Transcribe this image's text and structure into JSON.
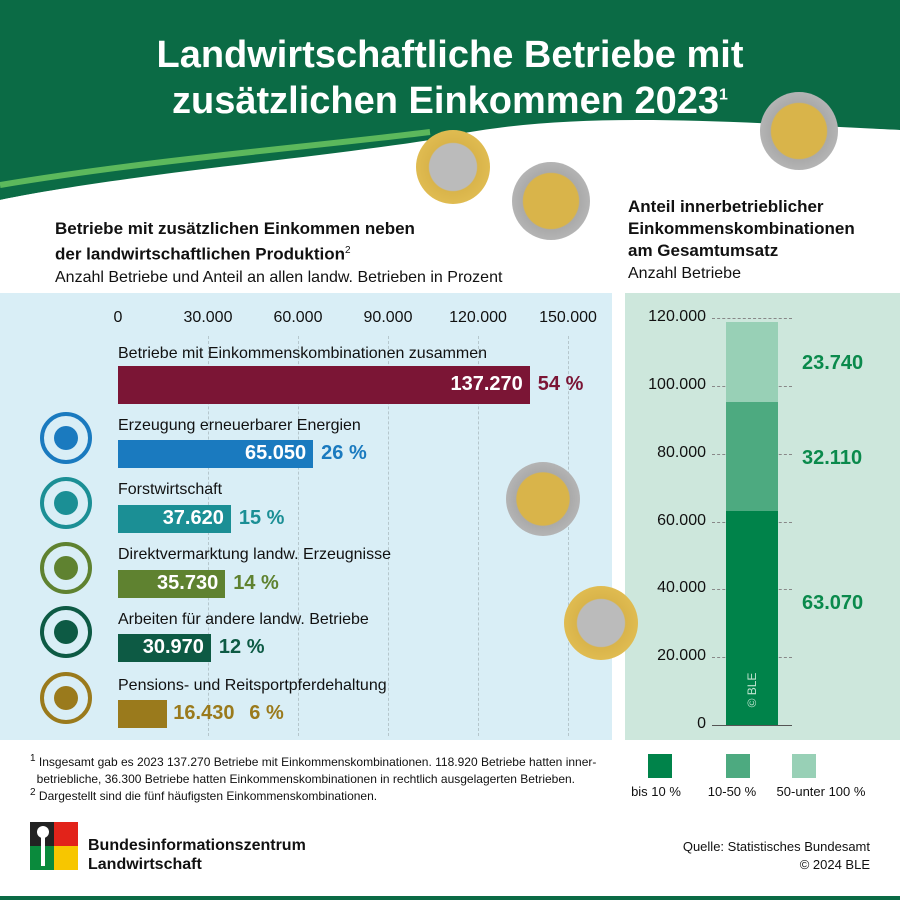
{
  "header": {
    "title_line1": "Landwirtschaftliche Betriebe mit",
    "title_line2": "zusätzlichen Einkommen 2023",
    "title_footnote": "1"
  },
  "left": {
    "heading_line1": "Betriebe mit zusätzlichen Einkommen neben",
    "heading_line2": "der landwirtschaftlichen Produktion",
    "heading_footnote": "2",
    "subtitle": "Anzahl Betriebe und Anteil an allen landw. Betrieben in Prozent"
  },
  "right": {
    "heading_line1": "Anteil innerbetrieblicher",
    "heading_line2": "Einkommenskombinationen",
    "heading_line3": "am Gesamtumsatz",
    "subtitle": "Anzahl Betriebe",
    "watermark": "© BLE"
  },
  "chart_data": [
    {
      "type": "bar",
      "orientation": "horizontal",
      "xlim": [
        0,
        150000
      ],
      "ticks": [
        "0",
        "30.000",
        "60.000",
        "90.000",
        "120.000",
        "150.000"
      ],
      "tick_values": [
        0,
        30000,
        60000,
        90000,
        120000,
        150000
      ],
      "grid": true,
      "categories": [
        "Betriebe mit Einkommenskombinationen zusammen",
        "Erzeugung erneuerbarer Energien",
        "Forstwirtschaft",
        "Direktvermarktung landw. Erzeugnisse",
        "Arbeiten für andere landw. Betriebe",
        "Pensions- und Reitsportpferdehaltung"
      ],
      "values": [
        137270,
        65050,
        37620,
        35730,
        30970,
        16430
      ],
      "value_labels": [
        "137.270",
        "65.050",
        "37.620",
        "35.730",
        "30.970",
        "16.430"
      ],
      "percent_labels": [
        "54 %",
        "26 %",
        "15 %",
        "14 %",
        "12 %",
        "6 %"
      ],
      "colors": [
        "#7b1535",
        "#1a7abf",
        "#1b8f95",
        "#5f8230",
        "#0d5a44",
        "#9a7a1c"
      ],
      "icons": [
        "",
        "wind-turbine-icon",
        "trees-icon",
        "produce-bag-icon",
        "tractor-icon",
        "horse-icon"
      ]
    },
    {
      "type": "bar",
      "stacked": true,
      "ylim": [
        0,
        120000
      ],
      "ticks": [
        "0",
        "20.000",
        "40.000",
        "60.000",
        "80.000",
        "100.000",
        "120.000"
      ],
      "tick_values": [
        0,
        20000,
        40000,
        60000,
        80000,
        100000,
        120000
      ],
      "grid": true,
      "series": [
        {
          "name": "bis 10 %",
          "value": 63070,
          "label": "63.070",
          "color": "#00834a"
        },
        {
          "name": "10-50 %",
          "value": 32110,
          "label": "32.110",
          "color": "#4daa80"
        },
        {
          "name": "50-unter 100 %",
          "value": 23740,
          "label": "23.740",
          "color": "#98d0b6"
        }
      ],
      "legend_placement": "bottom"
    }
  ],
  "footnotes": [
    {
      "mark": "1",
      "text1": "Insgesamt gab es 2023 137.270 Betriebe mit Einkommenskombinationen. 118.920 Betriebe hatten inner-",
      "text2": "betriebliche, 36.300 Betriebe hatten Einkommenskombinationen in rechtlich ausgelagerten Betrieben."
    },
    {
      "mark": "2",
      "text1": "Dargestellt sind die fünf häufigsten Einkommenskombinationen."
    }
  ],
  "logo": {
    "line1": "Bundesinformationszentrum",
    "line2": "Landwirtschaft"
  },
  "source": {
    "line1": "Quelle: Statistisches Bundesamt",
    "line2": "© 2024 BLE"
  },
  "colors": {
    "header": "#0b6b45",
    "left_bg": "#d9eef6",
    "right_bg": "#cde7dc"
  }
}
